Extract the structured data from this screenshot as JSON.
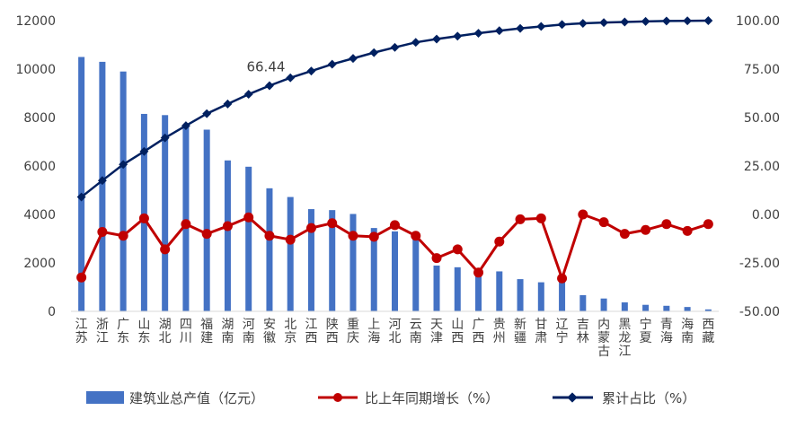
{
  "chart_data": {
    "type": "bar+line",
    "categories": [
      "江苏",
      "浙江",
      "广东",
      "山东",
      "湖北",
      "四川",
      "福建",
      "湖南",
      "河南",
      "安徽",
      "北京",
      "江西",
      "陕西",
      "重庆",
      "上海",
      "河北",
      "云南",
      "天津",
      "山西",
      "广西",
      "贵州",
      "新疆",
      "甘肃",
      "辽宁",
      "吉林",
      "内蒙古",
      "黑龙江",
      "宁夏",
      "青海",
      "海南",
      "西藏"
    ],
    "series": [
      {
        "name": "建筑业总产值（亿元）",
        "axis": "left",
        "kind": "bar",
        "color": "#4472C4",
        "values": [
          10500,
          10300,
          9900,
          8150,
          8100,
          7700,
          7500,
          6230,
          5970,
          5080,
          4720,
          4220,
          4180,
          4020,
          3440,
          3300,
          3260,
          1890,
          1820,
          1720,
          1650,
          1330,
          1200,
          1250,
          670,
          530,
          370,
          270,
          230,
          180,
          80
        ]
      },
      {
        "name": "比上年同期增长（%）",
        "axis": "right",
        "kind": "line",
        "color": "#C00000",
        "values": [
          -32.5,
          -9.0,
          -11.0,
          -2.0,
          -18.0,
          -5.0,
          -10.0,
          -6.0,
          -1.5,
          -11.0,
          -13.0,
          -7.0,
          -4.5,
          -11.0,
          -11.5,
          -5.5,
          -11.0,
          -22.5,
          -18.0,
          -30.0,
          -14.0,
          -2.5,
          -2.0,
          -33.0,
          0.0,
          -4.0,
          -10.0,
          -8.0,
          -5.0,
          -8.5,
          -5.0
        ]
      },
      {
        "name": "累计占比（%）",
        "axis": "right",
        "kind": "line",
        "color": "#002060",
        "values": [
          9.0,
          17.5,
          25.8,
          32.5,
          39.5,
          45.8,
          52.0,
          57.0,
          62.0,
          66.44,
          70.5,
          74.0,
          77.5,
          80.5,
          83.5,
          86.2,
          88.8,
          90.5,
          92.0,
          93.5,
          94.8,
          96.0,
          97.0,
          98.0,
          98.6,
          99.0,
          99.3,
          99.6,
          99.8,
          99.9,
          100.0
        ]
      }
    ],
    "ylim_left": [
      0,
      12000
    ],
    "yticks_left": [
      "0",
      "2000",
      "4000",
      "6000",
      "8000",
      "10000",
      "12000"
    ],
    "ylim_right": [
      -50,
      100
    ],
    "yticks_right": [
      "-50.00",
      "-25.00",
      "0.00",
      "25.00",
      "50.00",
      "75.00",
      "100.00"
    ],
    "annotation": {
      "label": "66.44",
      "category_index": 9,
      "series": "累计占比（%）"
    },
    "grid": false,
    "legend_position": "bottom"
  }
}
